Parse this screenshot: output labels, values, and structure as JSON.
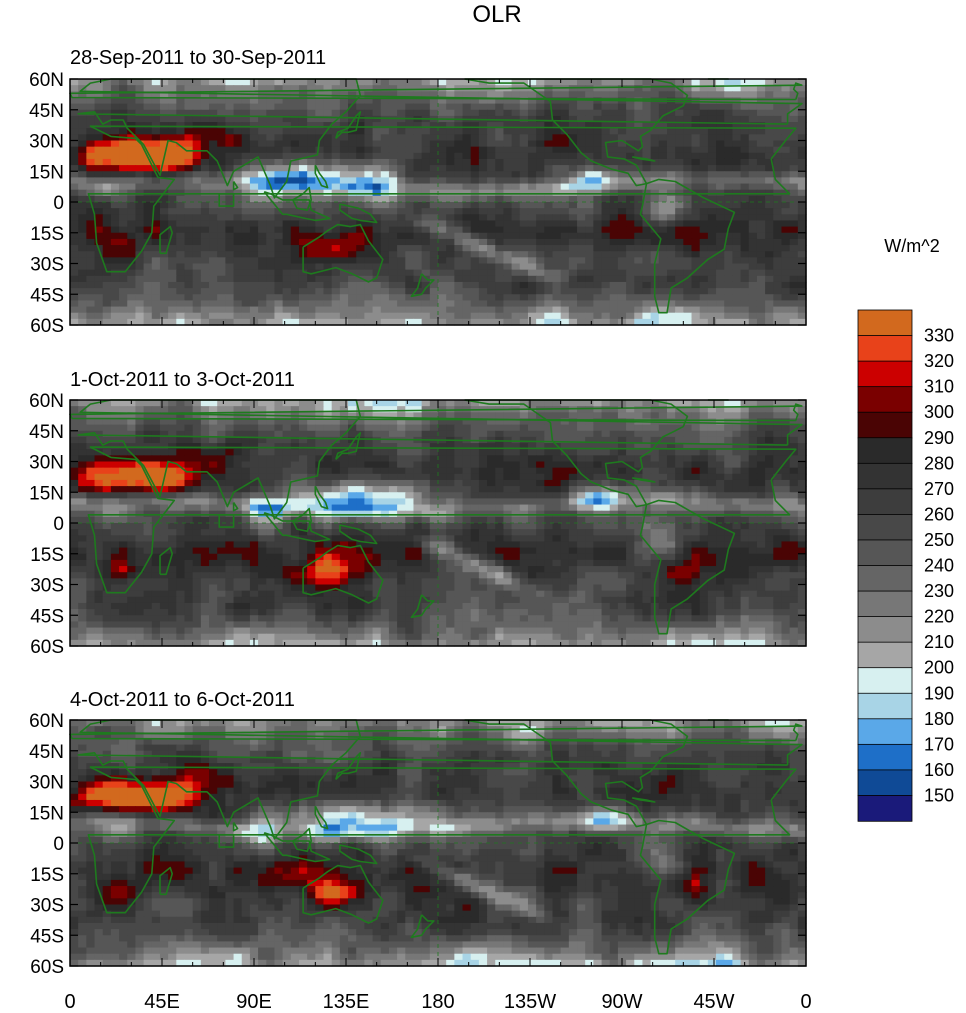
{
  "title": "OLR",
  "chart_data": {
    "type": "heatmap",
    "title": "OLR",
    "units_label": "W/m^2",
    "panels": [
      {
        "subtitle": "28-Sep-2011 to 30-Sep-2011"
      },
      {
        "subtitle": "1-Oct-2011 to 3-Oct-2011"
      },
      {
        "subtitle": "4-Oct-2011 to 6-Oct-2011"
      }
    ],
    "lat_ticks": [
      "60N",
      "45N",
      "30N",
      "15N",
      "0",
      "15S",
      "30S",
      "45S",
      "60S"
    ],
    "lon_ticks": [
      "0",
      "45E",
      "90E",
      "135E",
      "180",
      "135W",
      "90W",
      "45W",
      "0"
    ],
    "lat_range": [
      -60,
      60
    ],
    "lon_range": [
      0,
      360
    ],
    "colorbar": {
      "labels": [
        "330",
        "320",
        "310",
        "300",
        "290",
        "280",
        "270",
        "260",
        "250",
        "240",
        "230",
        "220",
        "210",
        "200",
        "190",
        "180",
        "170",
        "160",
        "150"
      ],
      "colors": [
        "#d2691e",
        "#e8421a",
        "#cc0000",
        "#7a0000",
        "#4a0404",
        "#2a2a2a",
        "#333333",
        "#3d3d3d",
        "#484848",
        "#565656",
        "#656565",
        "#777777",
        "#8c8c8c",
        "#a6a6a6",
        "#d7f0f0",
        "#a8d4e6",
        "#5aa8e8",
        "#1e6fc8",
        "#0f4a96",
        "#1a1a7a"
      ]
    },
    "coastline_color": "#1e7a1e"
  }
}
